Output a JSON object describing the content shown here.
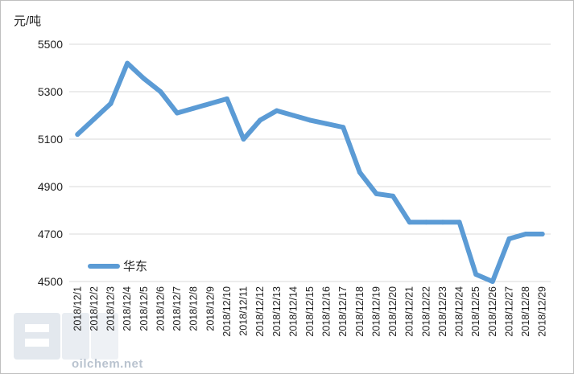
{
  "chart_data": {
    "type": "line",
    "ylabel": "元/吨",
    "ylim": [
      4500,
      5500
    ],
    "yticks": [
      4500,
      4700,
      4900,
      5100,
      5300,
      5500
    ],
    "grid": "horizontal",
    "legend_position": "bottom-left",
    "categories": [
      "2018/12/1",
      "2018/12/2",
      "2018/12/3",
      "2018/12/4",
      "2018/12/5",
      "2018/12/6",
      "2018/12/7",
      "2018/12/8",
      "2018/12/9",
      "2018/12/10",
      "2018/12/11",
      "2018/12/12",
      "2018/12/13",
      "2018/12/14",
      "2018/12/15",
      "2018/12/16",
      "2018/12/17",
      "2018/12/18",
      "2018/12/19",
      "2018/12/20",
      "2018/12/21",
      "2018/12/22",
      "2018/12/23",
      "2018/12/24",
      "2018/12/25",
      "2018/12/26",
      "2018/12/27",
      "2018/12/28",
      "2018/12/29"
    ],
    "series": [
      {
        "name": "华东",
        "color": "#5b9bd5",
        "values": [
          5120,
          5185,
          5250,
          5420,
          5355,
          5300,
          5210,
          5230,
          5250,
          5270,
          5100,
          5180,
          5220,
          5200,
          5180,
          5165,
          5150,
          4960,
          4870,
          4860,
          4750,
          4750,
          4750,
          4750,
          4530,
          4500,
          4680,
          4700,
          4700
        ]
      }
    ]
  },
  "watermark": {
    "text": "oilchem.net",
    "color": "#b9c3cf"
  }
}
